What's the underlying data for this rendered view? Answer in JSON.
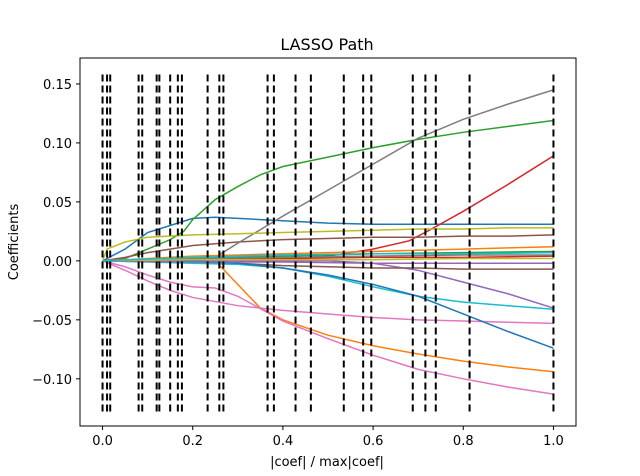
{
  "chart_data": {
    "type": "line",
    "title": "LASSO Path",
    "xlabel": "|coef| / max|coef|",
    "ylabel": "Coefficients",
    "xlim": [
      -0.05,
      1.05
    ],
    "ylim": [
      -0.14,
      0.172
    ],
    "grid": false,
    "legend": "none",
    "xticks": [
      {
        "value": 0.0,
        "label": "0.0"
      },
      {
        "value": 0.2,
        "label": "0.2"
      },
      {
        "value": 0.4,
        "label": "0.4"
      },
      {
        "value": 0.6,
        "label": "0.6"
      },
      {
        "value": 0.8,
        "label": "0.8"
      },
      {
        "value": 1.0,
        "label": "1.0"
      }
    ],
    "yticks": [
      {
        "value": -0.1,
        "label": "−0.10"
      },
      {
        "value": -0.05,
        "label": "−0.05"
      },
      {
        "value": 0.0,
        "label": "0.00"
      },
      {
        "value": 0.05,
        "label": "0.05"
      },
      {
        "value": 0.1,
        "label": "0.10"
      },
      {
        "value": 0.15,
        "label": "0.15"
      }
    ],
    "vlines": {
      "x": [
        0.0,
        0.01,
        0.017,
        0.08,
        0.088,
        0.12,
        0.126,
        0.15,
        0.167,
        0.176,
        0.233,
        0.259,
        0.268,
        0.366,
        0.38,
        0.428,
        0.462,
        0.535,
        0.578,
        0.596,
        0.688,
        0.716,
        0.739,
        0.814,
        1.0
      ],
      "ymin": -0.13,
      "ymax": 0.158,
      "color": "#000000",
      "style": "dashed"
    },
    "series": [
      {
        "color": "#1f77b4",
        "x": [
          0,
          0.05,
          0.1,
          0.15,
          0.2,
          0.25,
          0.3,
          0.4,
          0.5,
          0.6,
          0.7,
          0.8,
          0.9,
          1.0
        ],
        "y": [
          0,
          0.01,
          0.024,
          0.03,
          0.036,
          0.037,
          0.036,
          0.034,
          0.032,
          0.031,
          0.031,
          0.031,
          0.031,
          0.031
        ]
      },
      {
        "color": "#ff7f0e",
        "x": [
          0,
          0.1,
          0.2,
          0.25,
          0.3,
          0.35,
          0.4,
          0.5,
          0.6,
          0.7,
          0.8,
          0.9,
          1.0
        ],
        "y": [
          0,
          0,
          0.002,
          0.0,
          -0.02,
          -0.04,
          -0.05,
          -0.063,
          -0.072,
          -0.079,
          -0.085,
          -0.09,
          -0.094
        ]
      },
      {
        "color": "#2ca02c",
        "x": [
          0,
          0.05,
          0.1,
          0.15,
          0.18,
          0.2,
          0.25,
          0.3,
          0.35,
          0.4,
          0.5,
          0.6,
          0.7,
          0.8,
          0.9,
          1.0
        ],
        "y": [
          0,
          0.002,
          0.01,
          0.018,
          0.025,
          0.035,
          0.052,
          0.063,
          0.073,
          0.08,
          0.088,
          0.096,
          0.103,
          0.109,
          0.114,
          0.119
        ]
      },
      {
        "color": "#d62728",
        "x": [
          0,
          0.3,
          0.4,
          0.5,
          0.6,
          0.68,
          0.72,
          0.8,
          0.9,
          1.0
        ],
        "y": [
          0,
          0.0,
          0.002,
          0.004,
          0.01,
          0.017,
          0.025,
          0.042,
          0.065,
          0.089
        ]
      },
      {
        "color": "#9467bd",
        "x": [
          0,
          0.4,
          0.5,
          0.6,
          0.7,
          0.8,
          0.9,
          1.0
        ],
        "y": [
          0,
          0.0,
          0.0,
          -0.002,
          -0.008,
          -0.018,
          -0.028,
          -0.04
        ]
      },
      {
        "color": "#8c564b",
        "x": [
          0,
          0.05,
          0.1,
          0.15,
          0.2,
          0.3,
          0.4,
          0.5,
          0.6,
          0.7,
          0.8,
          0.9,
          1.0
        ],
        "y": [
          0,
          0.003,
          0.007,
          0.01,
          0.013,
          0.016,
          0.018,
          0.019,
          0.02,
          0.02,
          0.021,
          0.021,
          0.022
        ]
      },
      {
        "color": "#8c564b",
        "x": [
          0,
          0.3,
          0.4,
          0.5,
          0.6,
          0.7,
          0.8,
          0.9,
          1.0
        ],
        "y": [
          0,
          -0.002,
          -0.004,
          -0.005,
          -0.006,
          -0.006,
          -0.007,
          -0.007,
          -0.007
        ]
      },
      {
        "color": "#e377c2",
        "x": [
          0,
          0.05,
          0.1,
          0.15,
          0.2,
          0.3,
          0.4,
          0.5,
          0.6,
          0.7,
          0.8,
          0.9,
          1.0
        ],
        "y": [
          0,
          -0.008,
          -0.017,
          -0.025,
          -0.031,
          -0.038,
          -0.042,
          -0.045,
          -0.048,
          -0.05,
          -0.051,
          -0.052,
          -0.053
        ]
      },
      {
        "color": "#e377c2",
        "x": [
          0,
          0.05,
          0.1,
          0.15,
          0.2,
          0.25,
          0.3,
          0.4,
          0.5,
          0.6,
          0.7,
          0.8,
          0.9,
          1.0
        ],
        "y": [
          0,
          -0.005,
          -0.012,
          -0.018,
          -0.022,
          -0.023,
          -0.03,
          -0.051,
          -0.066,
          -0.08,
          -0.092,
          -0.1,
          -0.107,
          -0.113
        ]
      },
      {
        "color": "#7f7f7f",
        "x": [
          0,
          0.2,
          0.25,
          0.3,
          0.4,
          0.5,
          0.6,
          0.7,
          0.8,
          0.9,
          1.0
        ],
        "y": [
          0,
          0.0,
          0.003,
          0.015,
          0.038,
          0.06,
          0.082,
          0.104,
          0.12,
          0.133,
          0.145
        ]
      },
      {
        "color": "#bcbd22",
        "x": [
          0,
          0.01,
          0.05,
          0.1,
          0.2,
          0.3,
          0.4,
          0.5,
          0.6,
          0.7,
          0.8,
          0.9,
          1.0
        ],
        "y": [
          0,
          0.01,
          0.016,
          0.02,
          0.022,
          0.023,
          0.024,
          0.025,
          0.026,
          0.027,
          0.027,
          0.028,
          0.028
        ]
      },
      {
        "color": "#17becf",
        "x": [
          0,
          0.1,
          0.2,
          0.3,
          0.4,
          0.5,
          0.6,
          0.7,
          0.8,
          0.9,
          1.0
        ],
        "y": [
          0,
          -0.001,
          -0.002,
          -0.003,
          -0.006,
          -0.013,
          -0.022,
          -0.03,
          -0.035,
          -0.038,
          -0.041
        ]
      },
      {
        "color": "#1f77b4",
        "x": [
          0,
          0.2,
          0.3,
          0.4,
          0.5,
          0.6,
          0.7,
          0.8,
          0.9,
          1.0
        ],
        "y": [
          0,
          0.0,
          -0.002,
          -0.006,
          -0.012,
          -0.02,
          -0.03,
          -0.045,
          -0.06,
          -0.074
        ]
      },
      {
        "color": "#ff7f0e",
        "x": [
          0,
          0.1,
          0.2,
          0.3,
          0.4,
          0.5,
          0.6,
          0.7,
          0.8,
          0.9,
          1.0
        ],
        "y": [
          0,
          0.002,
          0.004,
          0.005,
          0.006,
          0.007,
          0.008,
          0.009,
          0.01,
          0.011,
          0.012
        ]
      },
      {
        "color": "#2ca02c",
        "x": [
          0,
          0.1,
          0.2,
          0.4,
          0.6,
          0.8,
          1.0
        ],
        "y": [
          0,
          0.001,
          0.002,
          0.004,
          0.006,
          0.007,
          0.008
        ]
      },
      {
        "color": "#d62728",
        "x": [
          0,
          0.2,
          0.4,
          0.6,
          0.8,
          1.0
        ],
        "y": [
          0,
          0.001,
          0.002,
          0.003,
          0.003,
          0.004
        ]
      },
      {
        "color": "#9467bd",
        "x": [
          0,
          0.2,
          0.4,
          0.6,
          0.8,
          1.0
        ],
        "y": [
          0,
          -0.001,
          -0.001,
          -0.002,
          -0.002,
          -0.002
        ]
      },
      {
        "color": "#7f7f7f",
        "x": [
          0,
          0.2,
          0.4,
          0.6,
          0.8,
          1.0
        ],
        "y": [
          0,
          0.002,
          0.003,
          0.004,
          0.005,
          0.005
        ]
      },
      {
        "color": "#bcbd22",
        "x": [
          0,
          0.2,
          0.4,
          0.6,
          0.8,
          1.0
        ],
        "y": [
          0,
          0.001,
          0.001,
          0.001,
          0.002,
          0.002
        ]
      },
      {
        "color": "#17becf",
        "x": [
          0,
          0.2,
          0.4,
          0.6,
          0.8,
          1.0
        ],
        "y": [
          0,
          0.003,
          0.005,
          0.006,
          0.006,
          0.007
        ]
      }
    ]
  }
}
